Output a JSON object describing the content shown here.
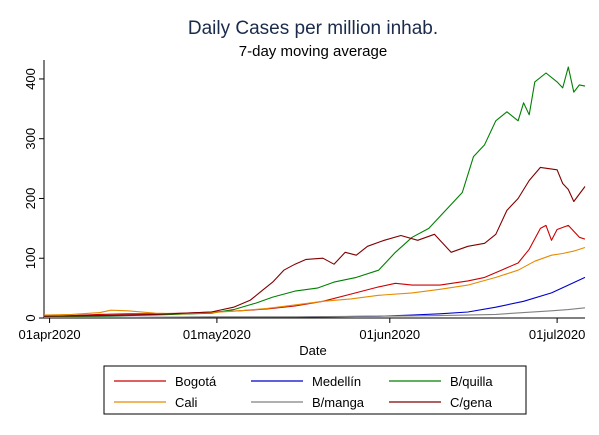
{
  "chart_data": {
    "type": "line",
    "title": "Daily Cases per million inhab.",
    "subtitle": "7-day moving average",
    "xlabel": "Date",
    "ylabel": "",
    "x_ticks": [
      "01apr2020",
      "01may2020",
      "01jun2020",
      "01jul2020"
    ],
    "y_ticks": [
      0,
      100,
      200,
      300,
      400
    ],
    "ylim": [
      0,
      425
    ],
    "xlim": [
      "2020-03-31",
      "2020-07-06"
    ],
    "grid": false,
    "legend_position": "bottom",
    "series": [
      {
        "name": "Bogotá",
        "color": "#cc0000",
        "points": [
          [
            "2020-03-31",
            2
          ],
          [
            "2020-04-05",
            4
          ],
          [
            "2020-04-10",
            6
          ],
          [
            "2020-04-15",
            7
          ],
          [
            "2020-04-20",
            7
          ],
          [
            "2020-04-25",
            8
          ],
          [
            "2020-04-30",
            10
          ],
          [
            "2020-05-05",
            12
          ],
          [
            "2020-05-10",
            15
          ],
          [
            "2020-05-15",
            20
          ],
          [
            "2020-05-20",
            28
          ],
          [
            "2020-05-25",
            40
          ],
          [
            "2020-05-30",
            52
          ],
          [
            "2020-06-02",
            58
          ],
          [
            "2020-06-05",
            55
          ],
          [
            "2020-06-10",
            55
          ],
          [
            "2020-06-15",
            62
          ],
          [
            "2020-06-18",
            68
          ],
          [
            "2020-06-21",
            80
          ],
          [
            "2020-06-24",
            92
          ],
          [
            "2020-06-26",
            115
          ],
          [
            "2020-06-28",
            150
          ],
          [
            "2020-06-29",
            155
          ],
          [
            "2020-06-30",
            130
          ],
          [
            "2020-07-01",
            148
          ],
          [
            "2020-07-03",
            155
          ],
          [
            "2020-07-05",
            135
          ],
          [
            "2020-07-06",
            132
          ]
        ]
      },
      {
        "name": "Medellín",
        "color": "#0000cc",
        "points": [
          [
            "2020-03-31",
            1
          ],
          [
            "2020-04-10",
            1
          ],
          [
            "2020-04-20",
            1
          ],
          [
            "2020-04-30",
            1
          ],
          [
            "2020-05-10",
            1
          ],
          [
            "2020-05-20",
            2
          ],
          [
            "2020-05-30",
            3
          ],
          [
            "2020-06-05",
            5
          ],
          [
            "2020-06-10",
            7
          ],
          [
            "2020-06-15",
            10
          ],
          [
            "2020-06-20",
            18
          ],
          [
            "2020-06-25",
            28
          ],
          [
            "2020-06-30",
            42
          ],
          [
            "2020-07-03",
            55
          ],
          [
            "2020-07-06",
            68
          ]
        ]
      },
      {
        "name": "B/quilla",
        "color": "#008000",
        "points": [
          [
            "2020-03-31",
            2
          ],
          [
            "2020-04-10",
            3
          ],
          [
            "2020-04-20",
            5
          ],
          [
            "2020-04-30",
            8
          ],
          [
            "2020-05-04",
            14
          ],
          [
            "2020-05-08",
            25
          ],
          [
            "2020-05-11",
            35
          ],
          [
            "2020-05-15",
            45
          ],
          [
            "2020-05-19",
            50
          ],
          [
            "2020-05-22",
            60
          ],
          [
            "2020-05-26",
            68
          ],
          [
            "2020-05-30",
            80
          ],
          [
            "2020-06-02",
            110
          ],
          [
            "2020-06-05",
            135
          ],
          [
            "2020-06-08",
            150
          ],
          [
            "2020-06-11",
            180
          ],
          [
            "2020-06-14",
            210
          ],
          [
            "2020-06-16",
            270
          ],
          [
            "2020-06-18",
            290
          ],
          [
            "2020-06-20",
            330
          ],
          [
            "2020-06-22",
            345
          ],
          [
            "2020-06-24",
            330
          ],
          [
            "2020-06-25",
            360
          ],
          [
            "2020-06-26",
            340
          ],
          [
            "2020-06-27",
            395
          ],
          [
            "2020-06-29",
            410
          ],
          [
            "2020-07-01",
            395
          ],
          [
            "2020-07-02",
            385
          ],
          [
            "2020-07-03",
            420
          ],
          [
            "2020-07-04",
            378
          ],
          [
            "2020-07-05",
            390
          ],
          [
            "2020-07-06",
            388
          ]
        ]
      },
      {
        "name": "Cali",
        "color": "#e68a00",
        "points": [
          [
            "2020-03-31",
            5
          ],
          [
            "2020-04-05",
            6
          ],
          [
            "2020-04-10",
            9
          ],
          [
            "2020-04-12",
            13
          ],
          [
            "2020-04-15",
            12
          ],
          [
            "2020-04-20",
            8
          ],
          [
            "2020-04-25",
            7
          ],
          [
            "2020-04-30",
            9
          ],
          [
            "2020-05-05",
            12
          ],
          [
            "2020-05-10",
            16
          ],
          [
            "2020-05-15",
            22
          ],
          [
            "2020-05-20",
            28
          ],
          [
            "2020-05-25",
            32
          ],
          [
            "2020-05-30",
            38
          ],
          [
            "2020-06-05",
            42
          ],
          [
            "2020-06-10",
            48
          ],
          [
            "2020-06-15",
            55
          ],
          [
            "2020-06-20",
            68
          ],
          [
            "2020-06-24",
            80
          ],
          [
            "2020-06-27",
            95
          ],
          [
            "2020-06-30",
            105
          ],
          [
            "2020-07-02",
            108
          ],
          [
            "2020-07-04",
            112
          ],
          [
            "2020-07-06",
            118
          ]
        ]
      },
      {
        "name": "B/manga",
        "color": "#808080",
        "points": [
          [
            "2020-03-31",
            1
          ],
          [
            "2020-04-15",
            1
          ],
          [
            "2020-04-30",
            2
          ],
          [
            "2020-05-15",
            2
          ],
          [
            "2020-05-30",
            3
          ],
          [
            "2020-06-10",
            4
          ],
          [
            "2020-06-20",
            6
          ],
          [
            "2020-06-25",
            9
          ],
          [
            "2020-06-30",
            12
          ],
          [
            "2020-07-03",
            14
          ],
          [
            "2020-07-06",
            17
          ]
        ]
      },
      {
        "name": "C/gena",
        "color": "#800000",
        "points": [
          [
            "2020-03-31",
            3
          ],
          [
            "2020-04-10",
            4
          ],
          [
            "2020-04-20",
            6
          ],
          [
            "2020-04-30",
            10
          ],
          [
            "2020-05-04",
            18
          ],
          [
            "2020-05-07",
            30
          ],
          [
            "2020-05-09",
            45
          ],
          [
            "2020-05-11",
            60
          ],
          [
            "2020-05-13",
            80
          ],
          [
            "2020-05-15",
            90
          ],
          [
            "2020-05-17",
            98
          ],
          [
            "2020-05-20",
            100
          ],
          [
            "2020-05-22",
            90
          ],
          [
            "2020-05-24",
            110
          ],
          [
            "2020-05-26",
            105
          ],
          [
            "2020-05-28",
            120
          ],
          [
            "2020-05-31",
            130
          ],
          [
            "2020-06-03",
            138
          ],
          [
            "2020-06-06",
            130
          ],
          [
            "2020-06-09",
            140
          ],
          [
            "2020-06-12",
            110
          ],
          [
            "2020-06-15",
            120
          ],
          [
            "2020-06-18",
            125
          ],
          [
            "2020-06-20",
            140
          ],
          [
            "2020-06-22",
            180
          ],
          [
            "2020-06-24",
            200
          ],
          [
            "2020-06-26",
            230
          ],
          [
            "2020-06-28",
            252
          ],
          [
            "2020-07-01",
            248
          ],
          [
            "2020-07-02",
            225
          ],
          [
            "2020-07-03",
            215
          ],
          [
            "2020-07-04",
            195
          ],
          [
            "2020-07-06",
            220
          ]
        ]
      }
    ]
  }
}
